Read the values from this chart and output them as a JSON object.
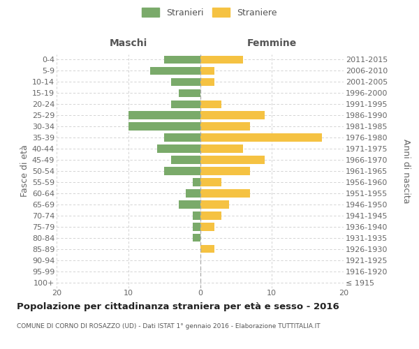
{
  "age_groups": [
    "100+",
    "95-99",
    "90-94",
    "85-89",
    "80-84",
    "75-79",
    "70-74",
    "65-69",
    "60-64",
    "55-59",
    "50-54",
    "45-49",
    "40-44",
    "35-39",
    "30-34",
    "25-29",
    "20-24",
    "15-19",
    "10-14",
    "5-9",
    "0-4"
  ],
  "birth_years": [
    "≤ 1915",
    "1916-1920",
    "1921-1925",
    "1926-1930",
    "1931-1935",
    "1936-1940",
    "1941-1945",
    "1946-1950",
    "1951-1955",
    "1956-1960",
    "1961-1965",
    "1966-1970",
    "1971-1975",
    "1976-1980",
    "1981-1985",
    "1986-1990",
    "1991-1995",
    "1996-2000",
    "2001-2005",
    "2006-2010",
    "2011-2015"
  ],
  "males": [
    0,
    0,
    0,
    0,
    1,
    1,
    1,
    3,
    2,
    1,
    5,
    4,
    6,
    5,
    10,
    10,
    4,
    3,
    4,
    7,
    5
  ],
  "females": [
    0,
    0,
    0,
    2,
    0,
    2,
    3,
    4,
    7,
    3,
    7,
    9,
    6,
    17,
    7,
    9,
    3,
    0,
    2,
    2,
    6
  ],
  "male_color": "#7aaa6a",
  "female_color": "#f5c242",
  "background_color": "#ffffff",
  "grid_color": "#cccccc",
  "title": "Popolazione per cittadinanza straniera per età e sesso - 2016",
  "subtitle": "COMUNE DI CORNO DI ROSAZZO (UD) - Dati ISTAT 1° gennaio 2016 - Elaborazione TUTTITALIA.IT",
  "ylabel_left": "Fasce di età",
  "ylabel_right": "Anni di nascita",
  "header_left": "Maschi",
  "header_right": "Femmine",
  "legend_male": "Stranieri",
  "legend_female": "Straniere",
  "xlim": 20,
  "tick_fontsize": 8,
  "label_fontsize": 9
}
